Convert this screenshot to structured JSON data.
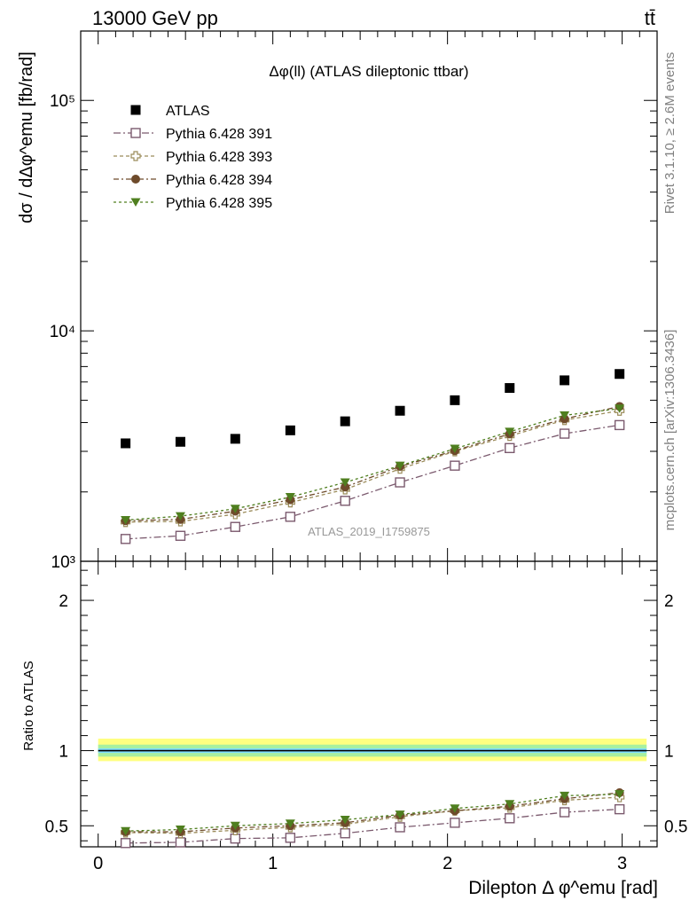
{
  "header": {
    "left": "13000 GeV pp",
    "right": "tt̄",
    "plot_title": "Δφ(ll) (ATLAS dileptonic ttbar)",
    "watermark": "ATLAS_2019_I1759875",
    "side_rivet": "Rivet 3.1.10, ≥ 2.6M events",
    "side_mcplots": "mcplots.cern.ch [arXiv:1306.3436]"
  },
  "chart_data": [
    {
      "type": "scatter",
      "panel": "main",
      "ylabel": "dσ / dΔφ^emu [fb/rad]",
      "yscale": "log",
      "xlim": [
        -0.1,
        3.2
      ],
      "ylim": [
        1000,
        200000
      ],
      "ytick_labels": [
        "10³",
        "10⁴",
        "10⁵"
      ],
      "ytick_values": [
        1000,
        10000,
        100000
      ],
      "legend_position": "top-left",
      "x": [
        0.157,
        0.471,
        0.785,
        1.1,
        1.414,
        1.728,
        2.042,
        2.356,
        2.67,
        2.985
      ],
      "series": [
        {
          "name": "ATLAS",
          "marker": "square-filled",
          "color": "#000000",
          "values": [
            3250,
            3300,
            3400,
            3700,
            4050,
            4500,
            5000,
            5650,
            6100,
            6500
          ]
        },
        {
          "name": "Pythia 6.428 391",
          "marker": "square-open",
          "color": "#7b5a6e",
          "values": [
            1250,
            1290,
            1410,
            1560,
            1830,
            2200,
            2600,
            3100,
            3580,
            3900
          ]
        },
        {
          "name": "Pythia 6.428 393",
          "marker": "cross-open",
          "color": "#9b8c5a",
          "values": [
            1480,
            1490,
            1600,
            1800,
            2050,
            2520,
            3000,
            3500,
            4100,
            4500
          ]
        },
        {
          "name": "Pythia 6.428 394",
          "marker": "circle-filled",
          "color": "#6e4b2b",
          "values": [
            1500,
            1520,
            1650,
            1850,
            2100,
            2580,
            3020,
            3570,
            4150,
            4700
          ]
        },
        {
          "name": "Pythia 6.428 395",
          "marker": "triangle-down-filled",
          "color": "#4f7f1f",
          "values": [
            1510,
            1570,
            1690,
            1900,
            2200,
            2600,
            3080,
            3650,
            4300,
            4600
          ]
        }
      ]
    },
    {
      "type": "scatter",
      "panel": "ratio",
      "ylabel": "Ratio to ATLAS",
      "xlabel": "Dilepton Δ φ^emu [rad]",
      "xlim": [
        -0.1,
        3.2
      ],
      "ylim": [
        0.36,
        2.26
      ],
      "xtick_labels": [
        "0",
        "1",
        "2",
        "3"
      ],
      "xtick_values": [
        0,
        1,
        2,
        3
      ],
      "ytick_labels": [
        "0.5",
        "1",
        "2"
      ],
      "ytick_values": [
        0.5,
        1,
        2
      ],
      "reference_line": 1,
      "bands": [
        {
          "color": "#ffff80",
          "low": 0.93,
          "high": 1.08
        },
        {
          "color": "#a8f0a0",
          "low": 0.96,
          "high": 1.04
        },
        {
          "color": "#80e0ff",
          "low": 0.985,
          "high": 1.015
        }
      ],
      "x": [
        0.157,
        0.471,
        0.785,
        1.1,
        1.414,
        1.728,
        2.042,
        2.356,
        2.67,
        2.985
      ],
      "series": [
        {
          "name": "Pythia 6.428 391",
          "marker": "square-open",
          "color": "#7b5a6e",
          "values": [
            0.385,
            0.39,
            0.415,
            0.42,
            0.45,
            0.49,
            0.52,
            0.55,
            0.59,
            0.61
          ]
        },
        {
          "name": "Pythia 6.428 393",
          "marker": "cross-open",
          "color": "#9b8c5a",
          "values": [
            0.455,
            0.45,
            0.47,
            0.49,
            0.51,
            0.56,
            0.6,
            0.62,
            0.67,
            0.69
          ]
        },
        {
          "name": "Pythia 6.428 394",
          "marker": "circle-filled",
          "color": "#6e4b2b",
          "values": [
            0.46,
            0.46,
            0.485,
            0.5,
            0.52,
            0.57,
            0.6,
            0.63,
            0.68,
            0.72
          ]
        },
        {
          "name": "Pythia 6.428 395",
          "marker": "triangle-down-filled",
          "color": "#4f7f1f",
          "values": [
            0.465,
            0.475,
            0.5,
            0.515,
            0.54,
            0.575,
            0.615,
            0.645,
            0.7,
            0.71
          ]
        }
      ]
    }
  ]
}
